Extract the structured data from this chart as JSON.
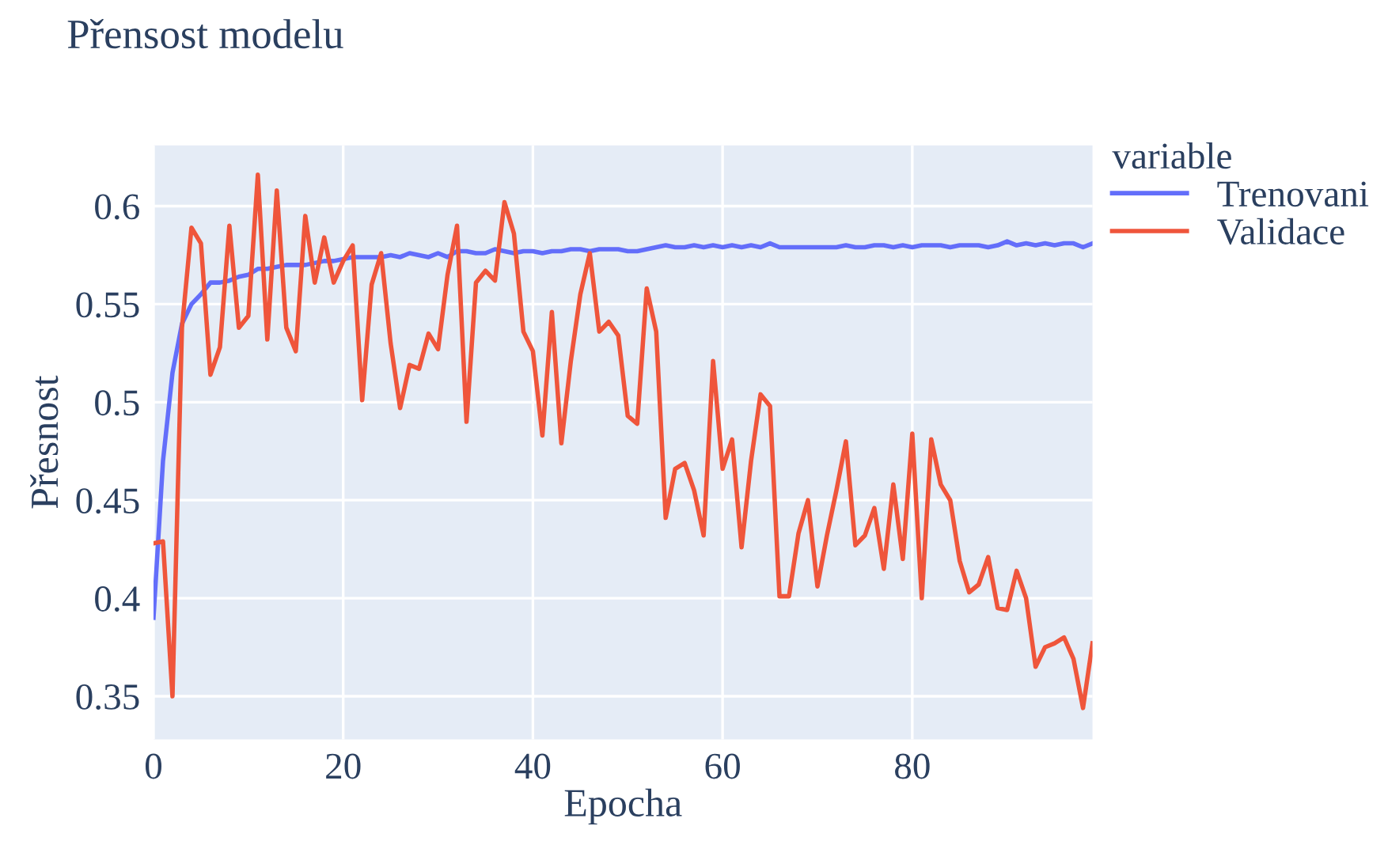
{
  "chart_data": {
    "type": "line",
    "title": "Přensost modelu",
    "xlabel": "Epocha",
    "ylabel": "Přesnost",
    "legend_title": "variable",
    "x": [
      0,
      1,
      2,
      3,
      4,
      5,
      6,
      7,
      8,
      9,
      10,
      11,
      12,
      13,
      14,
      15,
      16,
      17,
      18,
      19,
      20,
      21,
      22,
      23,
      24,
      25,
      26,
      27,
      28,
      29,
      30,
      31,
      32,
      33,
      34,
      35,
      36,
      37,
      38,
      39,
      40,
      41,
      42,
      43,
      44,
      45,
      46,
      47,
      48,
      49,
      50,
      51,
      52,
      53,
      54,
      55,
      56,
      57,
      58,
      59,
      60,
      61,
      62,
      63,
      64,
      65,
      66,
      67,
      68,
      69,
      70,
      71,
      72,
      73,
      74,
      75,
      76,
      77,
      78,
      79,
      80,
      81,
      82,
      83,
      84,
      85,
      86,
      87,
      88,
      89,
      90,
      91,
      92,
      93,
      94,
      95,
      96,
      97,
      98,
      99
    ],
    "series": [
      {
        "name": "Trenovani",
        "color": "#636efa",
        "values": [
          0.39,
          0.47,
          0.515,
          0.54,
          0.55,
          0.555,
          0.561,
          0.561,
          0.562,
          0.564,
          0.565,
          0.568,
          0.568,
          0.569,
          0.57,
          0.57,
          0.57,
          0.571,
          0.572,
          0.572,
          0.573,
          0.574,
          0.574,
          0.574,
          0.574,
          0.575,
          0.574,
          0.576,
          0.575,
          0.574,
          0.576,
          0.574,
          0.577,
          0.577,
          0.576,
          0.576,
          0.578,
          0.577,
          0.576,
          0.577,
          0.577,
          0.576,
          0.577,
          0.577,
          0.578,
          0.578,
          0.577,
          0.578,
          0.578,
          0.578,
          0.577,
          0.577,
          0.578,
          0.579,
          0.58,
          0.579,
          0.579,
          0.58,
          0.579,
          0.58,
          0.579,
          0.58,
          0.579,
          0.58,
          0.579,
          0.581,
          0.579,
          0.579,
          0.579,
          0.579,
          0.579,
          0.579,
          0.579,
          0.58,
          0.579,
          0.579,
          0.58,
          0.58,
          0.579,
          0.58,
          0.579,
          0.58,
          0.58,
          0.58,
          0.579,
          0.58,
          0.58,
          0.58,
          0.579,
          0.58,
          0.582,
          0.58,
          0.581,
          0.58,
          0.581,
          0.58,
          0.581,
          0.581,
          0.579,
          0.581
        ]
      },
      {
        "name": "Validace",
        "color": "#ef553b",
        "values": [
          0.428,
          0.429,
          0.35,
          0.538,
          0.589,
          0.581,
          0.514,
          0.528,
          0.59,
          0.538,
          0.544,
          0.616,
          0.532,
          0.608,
          0.538,
          0.526,
          0.595,
          0.561,
          0.584,
          0.561,
          0.572,
          0.58,
          0.501,
          0.56,
          0.576,
          0.53,
          0.497,
          0.519,
          0.517,
          0.535,
          0.527,
          0.565,
          0.59,
          0.49,
          0.561,
          0.567,
          0.562,
          0.602,
          0.586,
          0.536,
          0.526,
          0.483,
          0.546,
          0.479,
          0.521,
          0.555,
          0.576,
          0.536,
          0.541,
          0.534,
          0.493,
          0.489,
          0.558,
          0.536,
          0.441,
          0.466,
          0.469,
          0.455,
          0.432,
          0.521,
          0.466,
          0.481,
          0.426,
          0.47,
          0.504,
          0.498,
          0.401,
          0.401,
          0.433,
          0.45,
          0.406,
          0.432,
          0.455,
          0.48,
          0.427,
          0.432,
          0.446,
          0.415,
          0.458,
          0.42,
          0.484,
          0.4,
          0.481,
          0.458,
          0.45,
          0.419,
          0.403,
          0.407,
          0.421,
          0.395,
          0.394,
          0.414,
          0.4,
          0.365,
          0.375,
          0.377,
          0.38,
          0.369,
          0.344,
          0.377
        ]
      }
    ],
    "xlim": [
      0,
      99
    ],
    "ylim": [
      0.328,
      0.631
    ],
    "xticks": [
      0,
      20,
      40,
      60,
      80
    ],
    "yticks": [
      0.35,
      0.4,
      0.45,
      0.5,
      0.55,
      0.6
    ],
    "grid": true,
    "legend": "top right"
  }
}
